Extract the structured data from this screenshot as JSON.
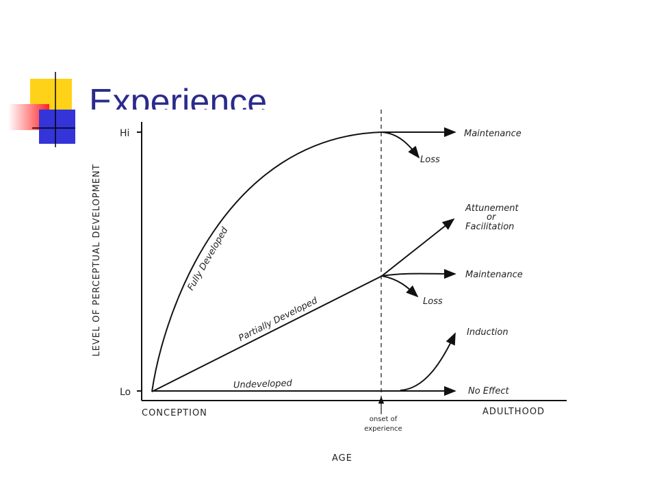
{
  "title": "Experience",
  "figure": {
    "y_axis_label": "LEVEL OF PERCEPTUAL DEVELOPMENT",
    "y_high": "Hi",
    "y_low": "Lo",
    "x_axis_label": "AGE",
    "x_start": "CONCEPTION",
    "x_end": "ADULTHOOD",
    "marker": [
      "onset of",
      "experience"
    ],
    "curves": [
      {
        "label": "Fully Developed",
        "outcomes": [
          [
            "Maintenance"
          ],
          [
            "Loss"
          ]
        ]
      },
      {
        "label": "Partially Developed",
        "outcomes": [
          [
            "Attunement",
            "or",
            "Facilitation"
          ],
          [
            "Maintenance"
          ],
          [
            "Loss"
          ]
        ]
      },
      {
        "label": "Undeveloped",
        "outcomes": [
          [
            "Induction"
          ],
          [
            "No Effect"
          ]
        ]
      }
    ]
  }
}
